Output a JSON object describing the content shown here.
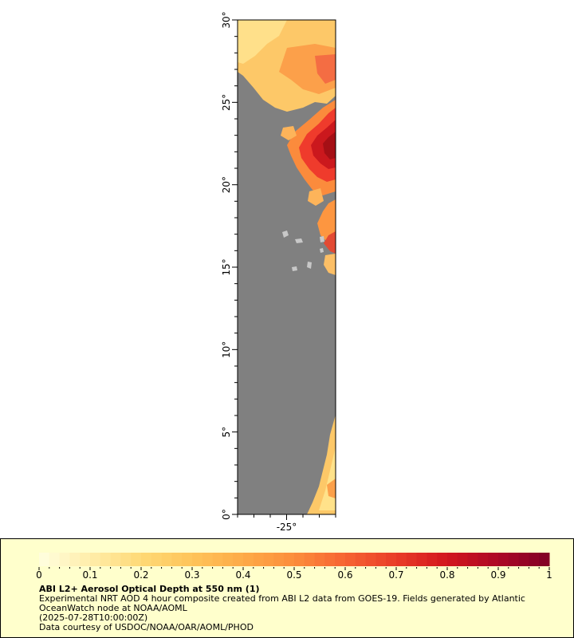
{
  "map": {
    "lat_axis": {
      "ticks": [
        {
          "value": 30,
          "label": "30°"
        },
        {
          "value": 25,
          "label": "25°"
        },
        {
          "value": 20,
          "label": "20°"
        },
        {
          "value": 15,
          "label": "15°"
        },
        {
          "value": 10,
          "label": "10°"
        },
        {
          "value": 5,
          "label": "5°"
        },
        {
          "value": 0,
          "label": "0°"
        }
      ]
    },
    "lon_axis": {
      "ticks": [
        {
          "value": -25,
          "label": "-25°"
        }
      ]
    },
    "colors": {
      "no_data": "#808080",
      "land_light": "#c8c8c8",
      "low": "#ffe28a",
      "mid": "#fc8d3c",
      "high": "#d7191c",
      "max": "#800020"
    }
  },
  "legend": {
    "title": "ABI L2+ Aerosol Optical Depth at 550 nm (1)",
    "description": "Experimental NRT AOD 4 hour composite created from ABI L2 data from GOES-19. Fields generated by Atlantic OceanWatch node at NOAA/AOML",
    "date": "(2025-07-28T10:00:00Z)",
    "credit": "Data courtesy of USDOC/NOAA/OAR/AOML/PHOD",
    "colorbar": {
      "min": 0,
      "max": 1,
      "labels": [
        "0",
        "0.1",
        "0.2",
        "0.3",
        "0.4",
        "0.5",
        "0.6",
        "0.7",
        "0.8",
        "0.9",
        "1"
      ]
    }
  }
}
